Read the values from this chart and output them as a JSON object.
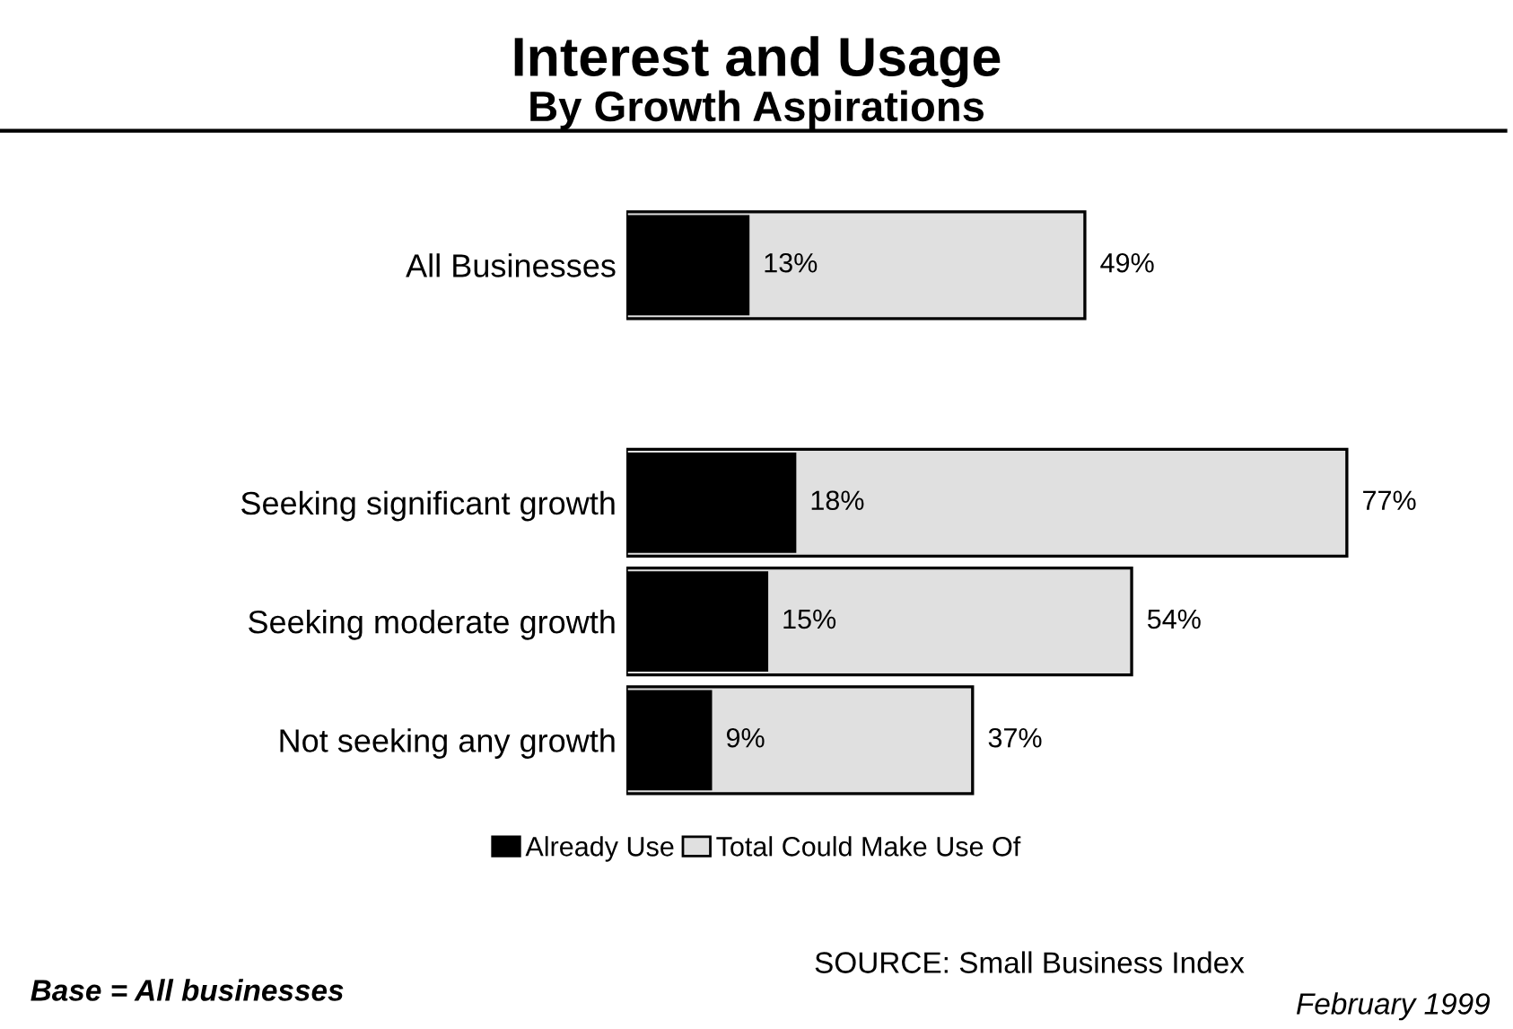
{
  "chart_data": {
    "type": "bar",
    "orientation": "horizontal",
    "title": "Interest and Usage",
    "subtitle": "By Growth Aspirations",
    "categories": [
      "All Businesses",
      null,
      "Seeking significant growth",
      "Seeking moderate growth",
      "Not seeking any growth"
    ],
    "series": [
      {
        "name": "Already Use",
        "color": "#000000",
        "values": [
          13,
          null,
          18,
          15,
          9
        ],
        "value_labels": [
          "13%",
          null,
          "18%",
          "15%",
          "9%"
        ]
      },
      {
        "name": "Total Could Make Use Of",
        "color": "#e0e0e0",
        "values": [
          49,
          null,
          77,
          54,
          37
        ],
        "value_labels": [
          "49%",
          null,
          "77%",
          "54%",
          "37%"
        ]
      }
    ],
    "legend": "bottom",
    "grid": false,
    "annotations": [
      "SOURCE: Small Business Index",
      "February 1999",
      "Base = All businesses"
    ]
  }
}
